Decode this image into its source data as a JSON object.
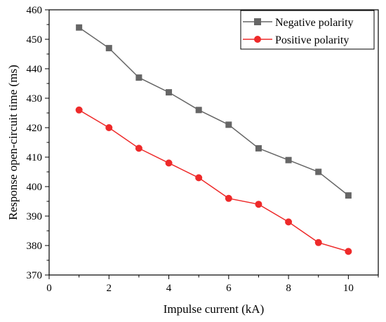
{
  "chart_data": {
    "type": "line",
    "title": "",
    "xlabel": "Impulse current (kA)",
    "ylabel": "Response open-circuit time (ms)",
    "xlim": [
      0,
      11
    ],
    "ylim": [
      370,
      460
    ],
    "x_ticks": [
      0,
      2,
      4,
      6,
      8,
      10
    ],
    "y_ticks": [
      370,
      380,
      390,
      400,
      410,
      420,
      430,
      440,
      450,
      460
    ],
    "grid": false,
    "legend_position": "top-right",
    "x": [
      1,
      2,
      3,
      4,
      5,
      6,
      7,
      8,
      9,
      10
    ],
    "series": [
      {
        "name": "Negative polarity",
        "marker": "square",
        "color": "#666666",
        "values": [
          454,
          447,
          437,
          432,
          426,
          421,
          413,
          409,
          405,
          397
        ]
      },
      {
        "name": "Positive polarity",
        "marker": "circle",
        "color": "#ee2a2a",
        "values": [
          426,
          420,
          413,
          408,
          403,
          396,
          394,
          388,
          381,
          378
        ]
      }
    ]
  }
}
